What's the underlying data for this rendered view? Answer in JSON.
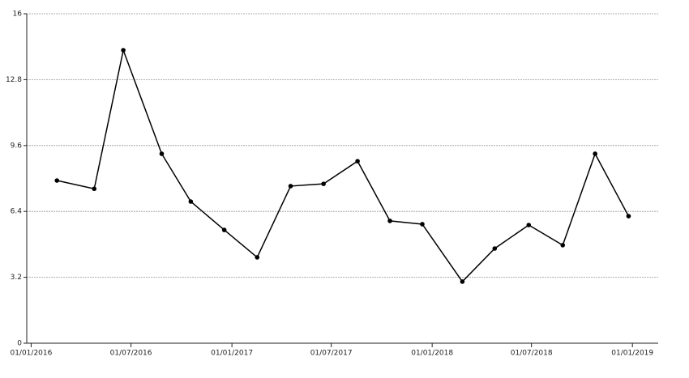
{
  "chart_data": {
    "type": "line",
    "x": [
      "2016-02-17",
      "2016-04-25",
      "2016-06-17",
      "2016-08-26",
      "2016-10-18",
      "2016-12-18",
      "2017-02-16",
      "2017-04-18",
      "2017-06-17",
      "2017-08-18",
      "2017-10-16",
      "2017-12-14",
      "2018-02-25",
      "2018-04-25",
      "2018-06-26",
      "2018-08-27",
      "2018-10-25",
      "2018-12-25"
    ],
    "series": [
      {
        "color": "#000000",
        "values": [
          7.9,
          7.5,
          14.23,
          9.2,
          6.88,
          5.5,
          4.17,
          7.63,
          7.74,
          8.84,
          5.94,
          5.78,
          2.99,
          4.6,
          5.74,
          4.76,
          9.2,
          6.17
        ]
      }
    ],
    "xlim": [
      "2015-12-24",
      "2019-02-17"
    ],
    "xticks": [
      {
        "value": "2016-01-01",
        "label": "01/01/2016"
      },
      {
        "value": "2016-07-01",
        "label": "01/07/2016"
      },
      {
        "value": "2017-01-01",
        "label": "01/01/2017"
      },
      {
        "value": "2017-07-01",
        "label": "01/07/2017"
      },
      {
        "value": "2018-01-01",
        "label": "01/01/2018"
      },
      {
        "value": "2018-07-01",
        "label": "01/07/2018"
      },
      {
        "value": "2019-01-01",
        "label": "01/01/2019"
      }
    ],
    "ylim": [
      0,
      16
    ],
    "yticks": [
      0,
      3.2,
      6.4,
      9.6,
      12.8,
      16
    ],
    "grid": true
  }
}
